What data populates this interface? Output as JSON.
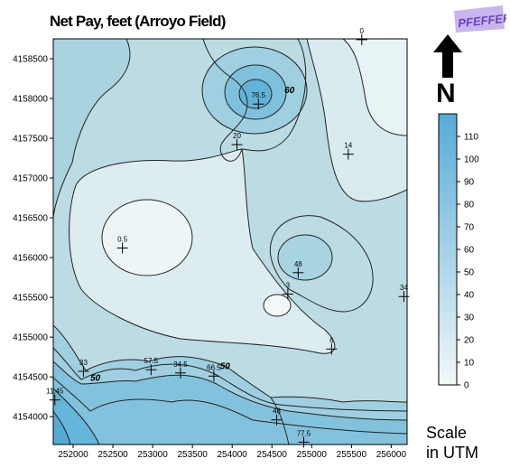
{
  "title": "Net Pay, feet (Arroyo Field)",
  "logo_text": "PFEFFER",
  "north_label": "N",
  "scale_note": [
    "Scale",
    "in UTM"
  ],
  "colors": {
    "contour_line": "#222222",
    "fill_low": "#e8f2f4",
    "fill_high": "#5aaed6",
    "logo": "#8a60c8"
  },
  "axes": {
    "x_ticks": [
      "252000",
      "252500",
      "253000",
      "253500",
      "254000",
      "254500",
      "255000",
      "255500",
      "256000"
    ],
    "y_ticks": [
      "4158500",
      "4158000",
      "4157500",
      "4157000",
      "4156500",
      "4156000",
      "4155500",
      "4155000",
      "4154500",
      "4154000"
    ]
  },
  "wells": [
    {
      "label": "0",
      "x": 255630,
      "y": 4158740
    },
    {
      "label": "76.5",
      "x": 254330,
      "y": 4157930
    },
    {
      "label": "20",
      "x": 254060,
      "y": 4157420
    },
    {
      "label": "14",
      "x": 255460,
      "y": 4157300
    },
    {
      "label": "0.5",
      "x": 252620,
      "y": 4156120
    },
    {
      "label": "48",
      "x": 254830,
      "y": 4155810
    },
    {
      "label": "3",
      "x": 254700,
      "y": 4155540
    },
    {
      "label": "34",
      "x": 256160,
      "y": 4155510
    },
    {
      "label": "6",
      "x": 255250,
      "y": 4154850
    },
    {
      "label": "33",
      "x": 252130,
      "y": 4154570
    },
    {
      "label": "57.5",
      "x": 252980,
      "y": 4154590
    },
    {
      "label": "34.5",
      "x": 253350,
      "y": 4154550
    },
    {
      "label": "66.5",
      "x": 253770,
      "y": 4154510
    },
    {
      "label": "11.45",
      "x": 251770,
      "y": 4154210
    },
    {
      "label": "48",
      "x": 254560,
      "y": 4153960
    },
    {
      "label": "77.5",
      "x": 254900,
      "y": 4153680
    }
  ],
  "contour_labels": [
    {
      "text": "60",
      "x": 254720,
      "y": 4158070
    },
    {
      "text": "50",
      "x": 252280,
      "y": 4154450
    },
    {
      "text": "50",
      "x": 253910,
      "y": 4154600
    }
  ],
  "legend": {
    "ticks": [
      "110",
      "100",
      "90",
      "80",
      "70",
      "60",
      "50",
      "40",
      "30",
      "20",
      "10",
      "0"
    ]
  }
}
